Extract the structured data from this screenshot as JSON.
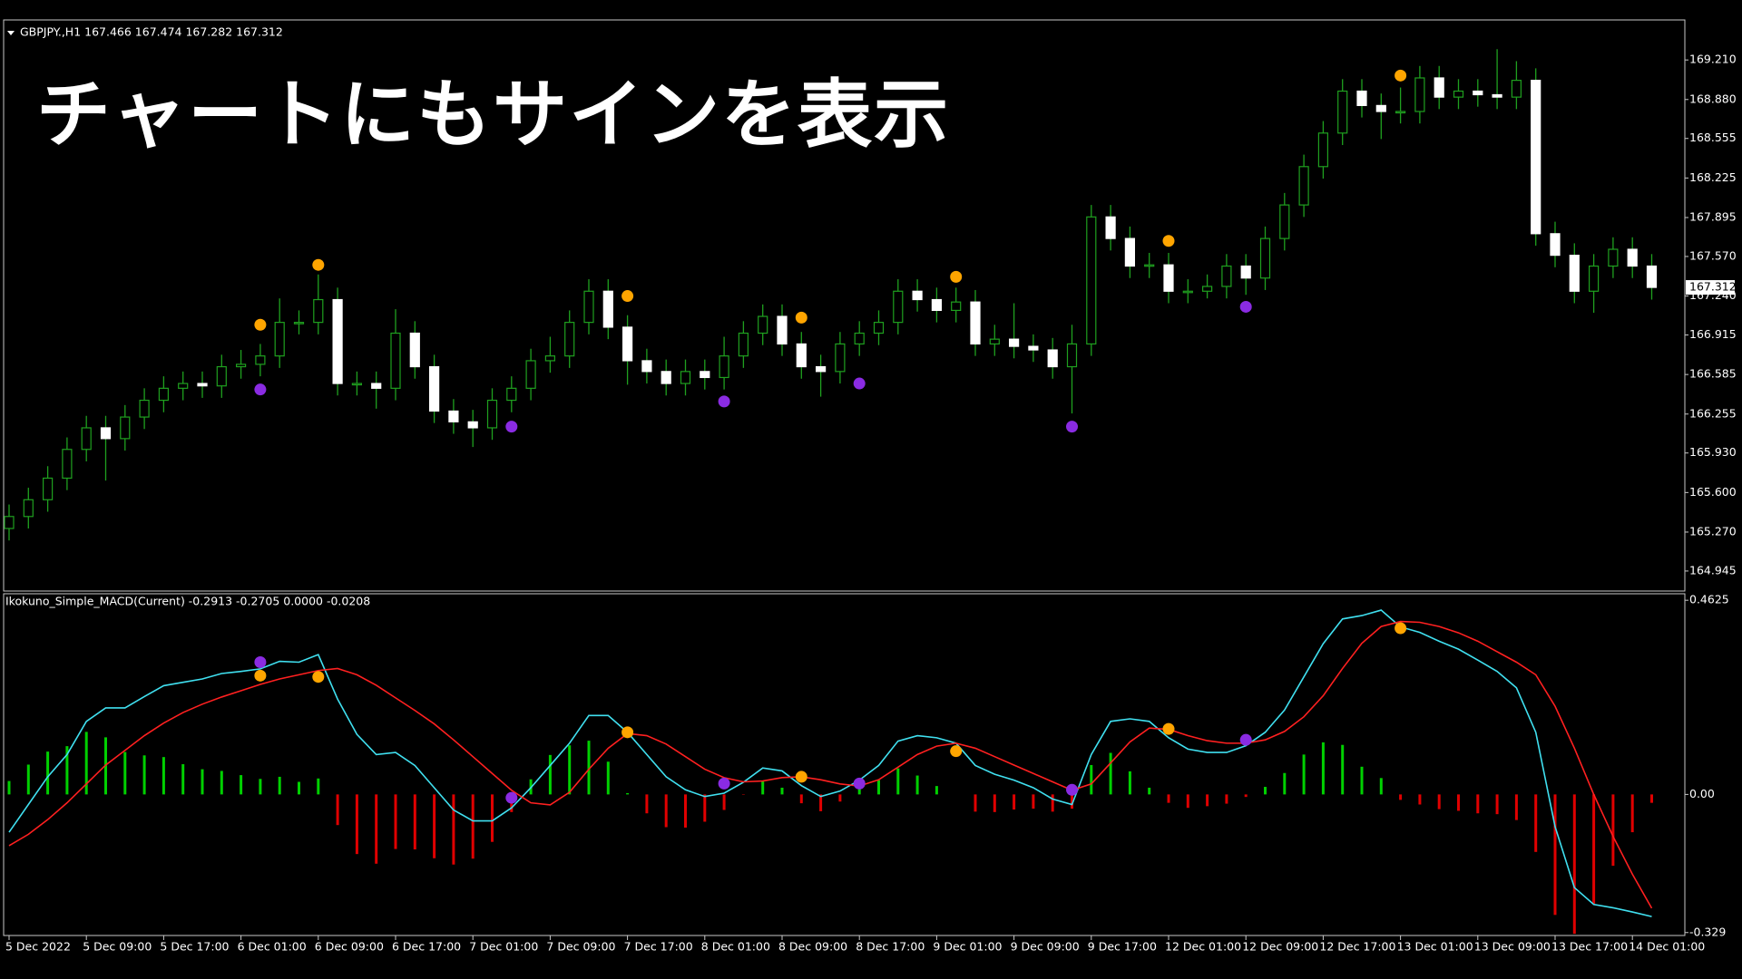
{
  "overlay_title": "チャートにもサインを表示",
  "chart_data": [
    {
      "type": "candlestick",
      "header": "GBPJPY.,H1 167.466 167.474 167.282 167.312",
      "categories": [
        "5 Dec 2022",
        "5 Dec 09:00",
        "5 Dec 17:00",
        "6 Dec 01:00",
        "6 Dec 09:00",
        "6 Dec 17:00",
        "7 Dec 01:00",
        "7 Dec 09:00",
        "7 Dec 17:00",
        "8 Dec 01:00",
        "8 Dec 09:00",
        "8 Dec 17:00",
        "9 Dec 01:00",
        "9 Dec 09:00",
        "9 Dec 17:00",
        "12 Dec 01:00",
        "12 Dec 09:00",
        "12 Dec 17:00",
        "13 Dec 01:00",
        "13 Dec 09:00",
        "13 Dec 17:00",
        "14 Dec 01:00"
      ],
      "open": [
        165.3,
        165.4,
        165.54,
        165.72,
        165.96,
        166.14,
        166.05,
        166.23,
        166.37,
        166.47,
        166.51,
        166.49,
        166.65,
        166.67,
        166.74,
        167.02,
        167.02,
        167.21,
        166.51,
        166.51,
        166.47,
        166.93,
        166.65,
        166.28,
        166.19,
        166.14,
        166.37,
        166.47,
        166.7,
        166.74,
        167.02,
        167.28,
        166.98,
        166.7,
        166.61,
        166.51,
        166.61,
        166.56,
        166.74,
        166.93,
        167.07,
        166.84,
        166.65,
        166.61,
        166.84,
        166.93,
        167.02,
        167.28,
        167.21,
        167.12,
        167.19,
        166.84,
        166.88,
        166.82,
        166.79,
        166.65,
        166.84,
        167.9,
        167.72,
        167.49,
        167.5,
        167.28,
        167.28,
        167.32,
        167.49,
        167.39,
        167.72,
        168.0,
        168.32,
        168.6,
        168.95,
        168.83,
        168.78,
        168.78,
        169.06,
        168.9,
        168.95,
        168.92,
        168.9,
        169.04,
        167.76,
        167.58,
        167.28,
        167.49,
        167.63,
        167.49
      ],
      "high": [
        165.5,
        165.64,
        165.82,
        166.06,
        166.24,
        166.24,
        166.33,
        166.47,
        166.57,
        166.61,
        166.61,
        166.75,
        166.79,
        166.84,
        167.22,
        167.12,
        167.42,
        167.31,
        166.61,
        166.61,
        167.13,
        167.03,
        166.75,
        166.38,
        166.29,
        166.47,
        166.57,
        166.8,
        166.9,
        167.12,
        167.38,
        167.38,
        167.08,
        166.8,
        166.71,
        166.71,
        166.71,
        166.9,
        167.03,
        167.17,
        167.17,
        166.94,
        166.75,
        166.94,
        167.03,
        167.12,
        167.38,
        167.38,
        167.31,
        167.31,
        167.29,
        167.0,
        167.18,
        166.92,
        166.89,
        167.0,
        168.0,
        168.0,
        167.82,
        167.6,
        167.6,
        167.38,
        167.42,
        167.59,
        167.59,
        167.82,
        168.1,
        168.42,
        168.7,
        169.05,
        169.05,
        168.93,
        168.98,
        169.16,
        169.16,
        169.05,
        169.05,
        169.3,
        169.2,
        169.14,
        167.86,
        167.68,
        167.59,
        167.73,
        167.73,
        167.59
      ],
      "low": [
        165.2,
        165.3,
        165.44,
        165.62,
        165.86,
        165.7,
        165.95,
        166.13,
        166.27,
        166.37,
        166.39,
        166.39,
        166.55,
        166.57,
        166.64,
        166.92,
        166.92,
        166.41,
        166.41,
        166.3,
        166.37,
        166.55,
        166.18,
        166.09,
        165.98,
        166.04,
        166.27,
        166.37,
        166.6,
        166.64,
        166.92,
        166.88,
        166.5,
        166.51,
        166.41,
        166.41,
        166.46,
        166.46,
        166.64,
        166.83,
        166.74,
        166.55,
        166.4,
        166.51,
        166.74,
        166.83,
        166.92,
        167.11,
        167.02,
        167.02,
        166.74,
        166.74,
        166.72,
        166.69,
        166.55,
        166.26,
        166.74,
        167.62,
        167.39,
        167.39,
        167.18,
        167.18,
        167.22,
        167.22,
        167.25,
        167.29,
        167.62,
        167.9,
        168.22,
        168.5,
        168.73,
        168.55,
        168.68,
        168.68,
        168.8,
        168.8,
        168.82,
        168.8,
        168.8,
        167.66,
        167.48,
        167.18,
        167.1,
        167.39,
        167.39,
        167.21
      ],
      "close": [
        165.4,
        165.54,
        165.72,
        165.96,
        166.14,
        166.05,
        166.23,
        166.37,
        166.47,
        166.51,
        166.49,
        166.65,
        166.67,
        166.74,
        167.02,
        167.02,
        167.21,
        166.51,
        166.51,
        166.47,
        166.93,
        166.65,
        166.28,
        166.19,
        166.14,
        166.37,
        166.47,
        166.7,
        166.74,
        167.02,
        167.28,
        166.98,
        166.7,
        166.61,
        166.51,
        166.61,
        166.56,
        166.74,
        166.93,
        167.07,
        166.84,
        166.65,
        166.61,
        166.84,
        166.93,
        167.02,
        167.28,
        167.21,
        167.12,
        167.19,
        166.84,
        166.88,
        166.82,
        166.79,
        166.65,
        166.84,
        167.9,
        167.72,
        167.49,
        167.5,
        167.28,
        167.28,
        167.32,
        167.49,
        167.39,
        167.72,
        168.0,
        168.32,
        168.6,
        168.95,
        168.83,
        168.78,
        168.78,
        169.06,
        168.9,
        168.95,
        168.92,
        168.9,
        169.04,
        167.76,
        167.58,
        167.28,
        167.49,
        167.63,
        167.49,
        167.312
      ],
      "up_color": "#1fa01f",
      "down_color": "#ffffff",
      "wick_color": "#1fa01f",
      "ylim": [
        164.778,
        169.544
      ],
      "yticks": [
        {
          "value": 169.21,
          "label": "169.210"
        },
        {
          "value": 168.88,
          "label": "168.880"
        },
        168.555,
        168.225,
        167.895,
        {
          "value": 167.57,
          "label": "167.570"
        },
        {
          "value": 167.24,
          "label": "167.240"
        },
        166.915,
        166.585,
        166.255,
        {
          "value": 165.93,
          "label": "165.930"
        },
        {
          "value": 165.6,
          "label": "165.600"
        },
        {
          "value": 165.27,
          "label": "165.270"
        },
        164.945
      ],
      "signals": [
        {
          "color": "#ffa500",
          "x": [
            13,
            16,
            32,
            41,
            49,
            60,
            72
          ],
          "values": [
            167.0,
            167.5,
            167.24,
            167.06,
            167.4,
            167.7,
            169.08
          ]
        },
        {
          "color": "#8a2be2",
          "x": [
            13,
            26,
            37,
            44,
            55,
            64
          ],
          "values": [
            166.46,
            166.15,
            166.36,
            166.51,
            166.15,
            167.15
          ]
        }
      ]
    },
    {
      "type": "macd",
      "header": "Ikokuno_Simple_MACD(Current) -0.2913 -0.2705 0.0000 -0.0208",
      "series": [
        {
          "color": "#40e0f0",
          "values": [
            -0.09,
            -0.024,
            0.042,
            0.095,
            0.174,
            0.206,
            0.206,
            0.233,
            0.259,
            0.267,
            0.275,
            0.288,
            0.293,
            0.299,
            0.317,
            0.315,
            0.333,
            0.227,
            0.143,
            0.095,
            0.1,
            0.069,
            0.016,
            -0.037,
            -0.063,
            -0.063,
            -0.032,
            0.016,
            0.069,
            0.122,
            0.188,
            0.188,
            0.148,
            0.095,
            0.042,
            0.011,
            -0.005,
            0.003,
            0.029,
            0.063,
            0.056,
            0.021,
            -0.005,
            0.008,
            0.034,
            0.069,
            0.127,
            0.14,
            0.135,
            0.122,
            0.069,
            0.048,
            0.034,
            0.016,
            -0.011,
            -0.024,
            0.095,
            0.174,
            0.18,
            0.174,
            0.135,
            0.108,
            0.1,
            0.1,
            0.116,
            0.148,
            0.201,
            0.28,
            0.359,
            0.418,
            0.426,
            0.439,
            0.399,
            0.386,
            0.365,
            0.346,
            0.32,
            0.293,
            0.254,
            0.148,
            -0.077,
            -0.222,
            -0.262,
            -0.27,
            -0.28,
            -0.291
          ]
        },
        {
          "color": "#ff2020",
          "values": [
            -0.122,
            -0.095,
            -0.06,
            -0.02,
            0.025,
            0.07,
            0.105,
            0.14,
            0.17,
            0.195,
            0.215,
            0.232,
            0.247,
            0.262,
            0.275,
            0.285,
            0.295,
            0.3,
            0.285,
            0.26,
            0.23,
            0.2,
            0.168,
            0.13,
            0.09,
            0.05,
            0.01,
            -0.02,
            -0.025,
            0.005,
            0.06,
            0.11,
            0.145,
            0.14,
            0.12,
            0.09,
            0.06,
            0.04,
            0.03,
            0.032,
            0.04,
            0.042,
            0.035,
            0.025,
            0.02,
            0.035,
            0.065,
            0.095,
            0.115,
            0.122,
            0.11,
            0.09,
            0.07,
            0.05,
            0.03,
            0.01,
            0.025,
            0.075,
            0.125,
            0.158,
            0.155,
            0.14,
            0.128,
            0.122,
            0.122,
            0.13,
            0.15,
            0.185,
            0.235,
            0.3,
            0.36,
            0.4,
            0.412,
            0.41,
            0.4,
            0.385,
            0.365,
            0.34,
            0.315,
            0.285,
            0.21,
            0.11,
            0.0,
            -0.1,
            -0.19,
            -0.271
          ]
        }
      ],
      "histogram": {
        "up_color": "#00d000",
        "down_color": "#e00000",
        "values": [
          0.032,
          0.071,
          0.102,
          0.115,
          0.149,
          0.136,
          0.101,
          0.093,
          0.089,
          0.072,
          0.06,
          0.056,
          0.046,
          0.037,
          0.042,
          0.03,
          0.038,
          -0.073,
          -0.142,
          -0.165,
          -0.13,
          -0.131,
          -0.152,
          -0.167,
          -0.153,
          -0.113,
          -0.042,
          0.036,
          0.094,
          0.117,
          0.128,
          0.078,
          0.003,
          -0.045,
          -0.078,
          -0.079,
          -0.065,
          -0.037,
          -0.001,
          0.031,
          0.016,
          -0.021,
          -0.04,
          -0.017,
          0.014,
          0.034,
          0.062,
          0.045,
          0.02,
          0.0,
          -0.041,
          -0.042,
          -0.036,
          -0.034,
          -0.041,
          -0.034,
          0.07,
          0.099,
          0.055,
          0.016,
          -0.02,
          -0.032,
          -0.028,
          -0.022,
          -0.006,
          0.018,
          0.051,
          0.095,
          0.124,
          0.118,
          0.066,
          0.039,
          -0.013,
          -0.024,
          -0.035,
          -0.039,
          -0.045,
          -0.047,
          -0.061,
          -0.137,
          -0.287,
          -0.332,
          -0.262,
          -0.17,
          -0.09,
          -0.02
        ]
      },
      "ylim": [
        -0.336,
        0.478
      ],
      "yticks": [
        0.4625,
        {
          "value": 0,
          "label": "0.00"
        },
        -0.329
      ],
      "signals": [
        {
          "color": "#ffa500",
          "x": [
            13,
            16,
            32,
            41,
            49,
            60,
            72
          ],
          "values": [
            0.283,
            0.28,
            0.148,
            0.042,
            0.103,
            0.156,
            0.396
          ]
        },
        {
          "color": "#8a2be2",
          "x": [
            13,
            26,
            37,
            44,
            55,
            64
          ],
          "values": [
            0.315,
            -0.008,
            0.026,
            0.026,
            0.011,
            0.13
          ]
        }
      ]
    }
  ]
}
